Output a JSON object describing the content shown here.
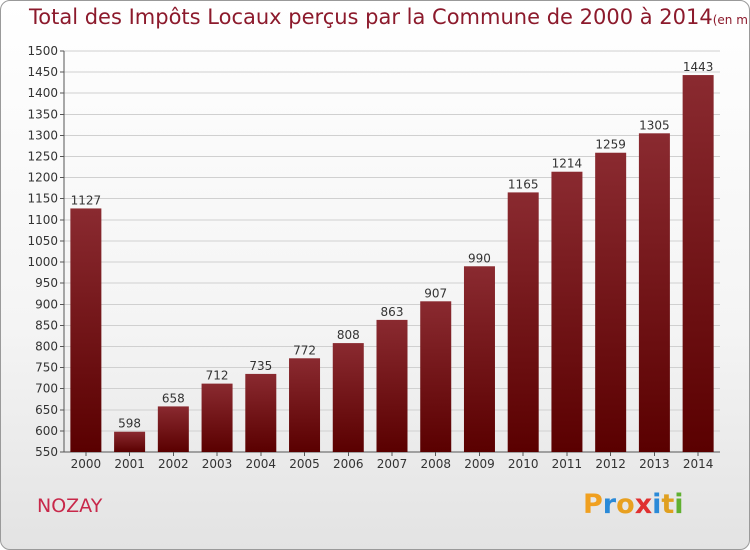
{
  "title": "Total des Impôts Locaux perçus par la Commune de 2000 à 2014",
  "unit_label": "(en milliers d'€)",
  "commune": "NOZAY",
  "brand": "Proxiti",
  "colors": {
    "bar_top": "#8a2a30",
    "bar_bottom": "#5a0000",
    "title": "#8c1a2c",
    "commune": "#c8284a",
    "grid": "#d0d0d0"
  },
  "chart_data": {
    "type": "bar",
    "title": "Total des Impôts Locaux perçus par la Commune de 2000 à 2014",
    "xlabel": "",
    "ylabel": "(en milliers d'€)",
    "ylim": [
      550,
      1500
    ],
    "ytick_step": 50,
    "grid": true,
    "categories": [
      "2000",
      "2001",
      "2002",
      "2003",
      "2004",
      "2005",
      "2006",
      "2007",
      "2008",
      "2009",
      "2010",
      "2011",
      "2012",
      "2013",
      "2014"
    ],
    "values": [
      1127,
      598,
      658,
      712,
      735,
      772,
      808,
      863,
      907,
      990,
      1165,
      1214,
      1259,
      1305,
      1443
    ]
  }
}
